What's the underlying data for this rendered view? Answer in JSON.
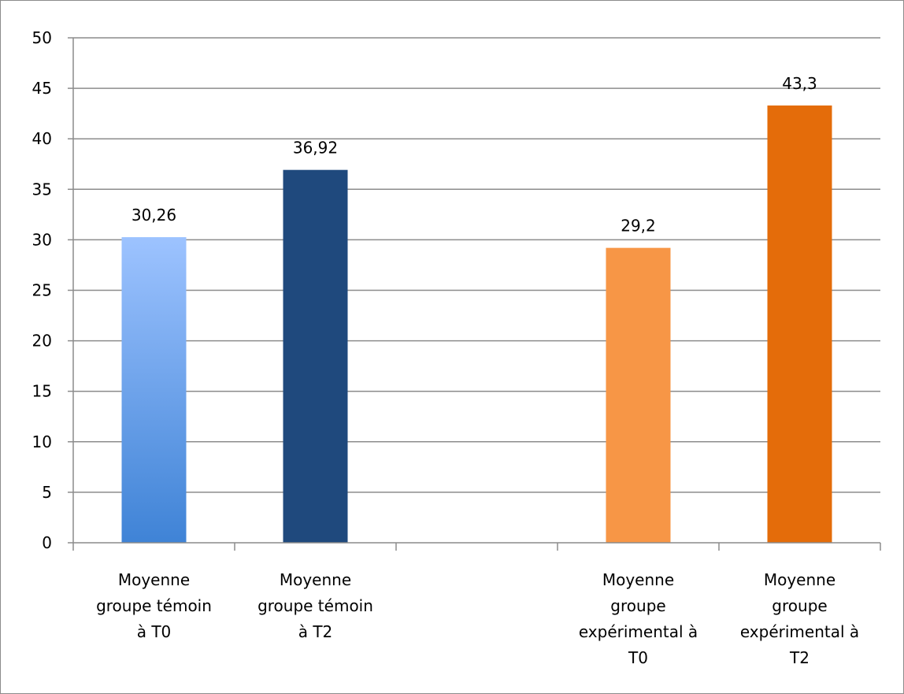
{
  "chart_data": {
    "type": "bar",
    "title": "",
    "xlabel": "",
    "ylabel": "",
    "ylim": [
      0,
      50
    ],
    "yticks": [
      0,
      5,
      10,
      15,
      20,
      25,
      30,
      35,
      40,
      45,
      50
    ],
    "grid": true,
    "legend": "none",
    "categories": [
      "Moyenne groupe témoin à T0",
      "Moyenne groupe témoin à T2",
      "",
      "Moyenne groupe expérimental à T0",
      "Moyenne groupe expérimental à T2"
    ],
    "category_lines": [
      [
        "Moyenne",
        "groupe témoin",
        "à T0"
      ],
      [
        "Moyenne",
        "groupe témoin",
        "à T2"
      ],
      [],
      [
        "Moyenne",
        "groupe",
        "expérimental à",
        "T0"
      ],
      [
        "Moyenne",
        "groupe",
        "expérimental à",
        "T2"
      ]
    ],
    "values": [
      30.26,
      36.92,
      null,
      29.2,
      43.3
    ],
    "data_labels": [
      "30,26",
      "36,92",
      "",
      "29,2",
      "43,3"
    ],
    "colors": [
      [
        "#9dc3ff",
        "#3f83d6"
      ],
      [
        "#1f497d",
        "#1f497d"
      ],
      null,
      [
        "#f79646",
        "#f79646"
      ],
      [
        "#e46c0a",
        "#e46c0a"
      ]
    ]
  }
}
